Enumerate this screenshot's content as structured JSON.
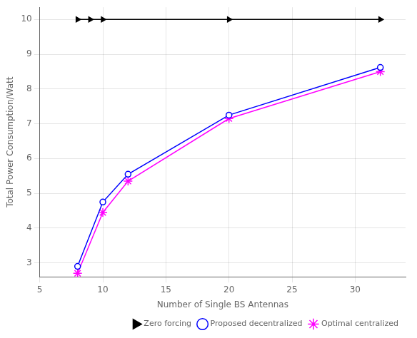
{
  "chart_data": {
    "type": "line",
    "xlabel": "Number of Single BS Antennas",
    "ylabel": "Total Power Consumption/Watt",
    "series": [
      {
        "name": "Zero forcing",
        "color": "#000000",
        "marker": "triangle_right",
        "x": [
          8,
          9,
          10,
          20,
          32
        ],
        "values": [
          10,
          10,
          10,
          10,
          10
        ]
      },
      {
        "name": "Proposed decentralized",
        "color": "#0000FF",
        "marker": "circle",
        "x": [
          8,
          10,
          12,
          20,
          32
        ],
        "values": [
          2.9,
          4.75,
          5.55,
          7.25,
          8.62
        ]
      },
      {
        "name": "Optimal centralized",
        "color": "#FF00FF",
        "marker": "star",
        "x": [
          8,
          10,
          12,
          20,
          32
        ],
        "values": [
          2.7,
          4.45,
          5.35,
          7.15,
          8.5
        ]
      }
    ],
    "xlim": [
      5,
      34
    ],
    "ylim": [
      2.6,
      10.35
    ],
    "xticks": [
      5,
      10,
      15,
      20,
      25,
      30
    ],
    "yticks": [
      3,
      4,
      5,
      6,
      7,
      8,
      9,
      10
    ],
    "grid": true,
    "legend": "lower right"
  }
}
